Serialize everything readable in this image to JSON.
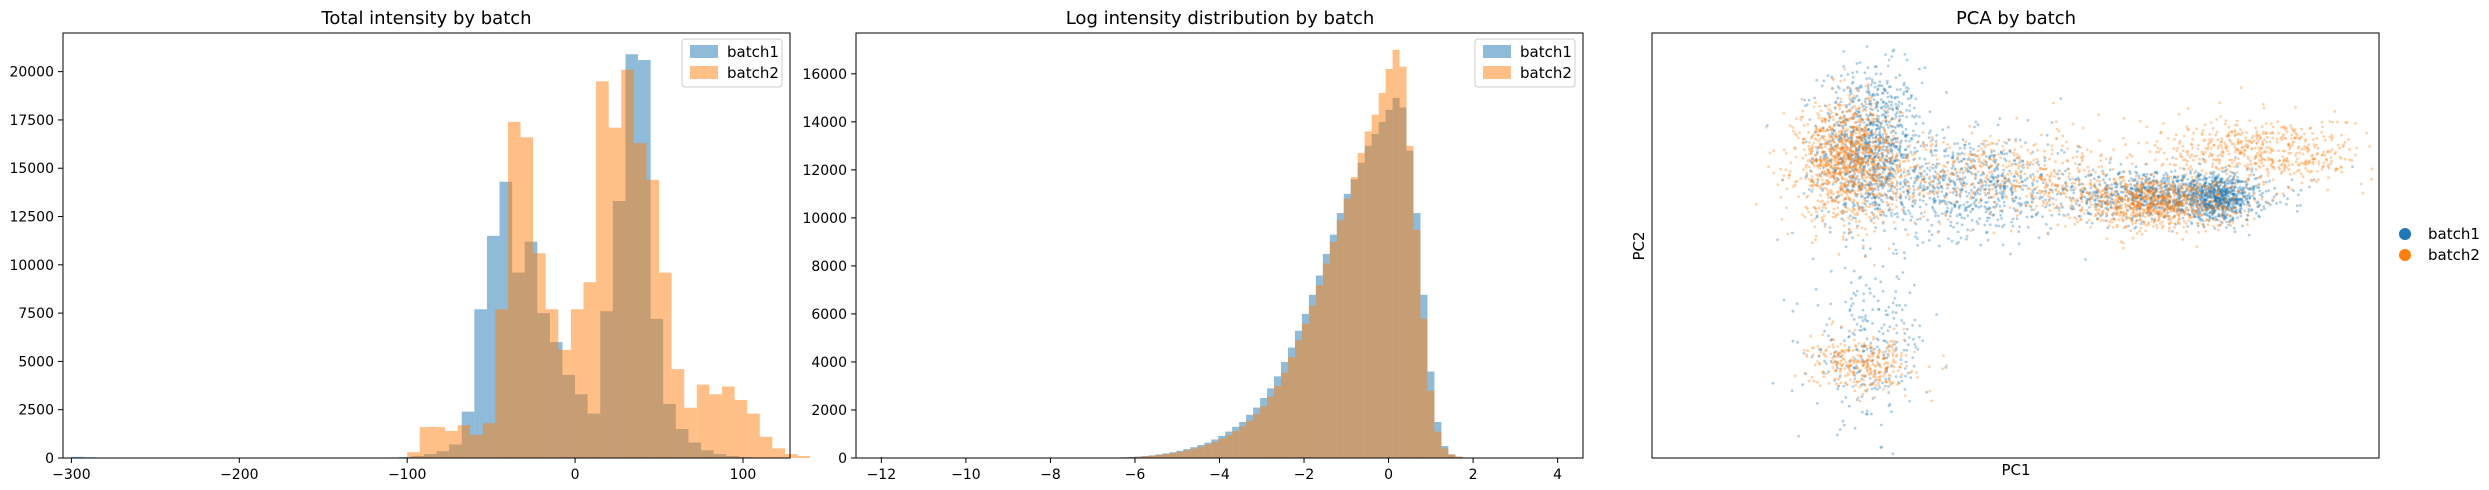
{
  "colors": {
    "batch1": "#1f77b4",
    "batch2": "#ff7f0e"
  },
  "chart_data": [
    {
      "type": "histogram",
      "title": "Total intensity by batch",
      "xlabel": "",
      "ylabel": "",
      "xlim": [
        -305,
        128
      ],
      "ylim": [
        0,
        22000
      ],
      "xticks": [
        -300,
        -200,
        -100,
        0,
        100
      ],
      "yticks": [
        0,
        2500,
        5000,
        7500,
        10000,
        12500,
        15000,
        17500,
        20000
      ],
      "legend": {
        "placement": "top-right",
        "entries": [
          "batch1",
          "batch2"
        ]
      },
      "alpha": 0.5,
      "series": [
        {
          "name": "batch1",
          "bin_start": -300,
          "bin_width": 7.5,
          "counts": [
            60,
            40,
            20,
            10,
            10,
            5,
            5,
            5,
            5,
            5,
            5,
            5,
            5,
            5,
            5,
            5,
            5,
            5,
            5,
            5,
            5,
            10,
            10,
            15,
            20,
            30,
            50,
            100,
            200,
            350,
            700,
            2400,
            7700,
            11500,
            14300,
            9600,
            11200,
            7500,
            6000,
            4300,
            3300,
            2300,
            7600,
            13300,
            20900,
            20600,
            7200,
            2800,
            1500,
            800,
            400,
            200,
            100,
            50,
            20,
            10,
            0,
            0
          ]
        },
        {
          "name": "batch2",
          "bin_start": -100,
          "bin_width": 7.5,
          "counts": [
            300,
            1600,
            1600,
            1400,
            1700,
            1200,
            1800,
            7700,
            17400,
            16600,
            10600,
            7700,
            5600,
            7700,
            9100,
            19500,
            17100,
            20100,
            16300,
            14400,
            9600,
            4600,
            2600,
            3800,
            3300,
            3700,
            3000,
            2300,
            1100,
            500,
            200,
            100
          ]
        }
      ]
    },
    {
      "type": "histogram",
      "title": "Log intensity distribution by batch",
      "xlabel": "",
      "ylabel": "",
      "xlim": [
        -12.6,
        4.6
      ],
      "ylim": [
        0,
        17700
      ],
      "xticks": [
        -12,
        -10,
        -8,
        -6,
        -4,
        -2,
        0,
        2,
        4
      ],
      "yticks": [
        0,
        2000,
        4000,
        6000,
        8000,
        10000,
        12000,
        14000,
        16000
      ],
      "legend": {
        "placement": "top-right",
        "entries": [
          "batch1",
          "batch2"
        ]
      },
      "alpha": 0.5,
      "series": [
        {
          "name": "batch1",
          "bin_start": -7.0,
          "bin_width": 0.165,
          "counts": [
            5,
            10,
            15,
            20,
            30,
            45,
            60,
            80,
            110,
            150,
            190,
            240,
            300,
            370,
            450,
            540,
            640,
            770,
            920,
            1100,
            1300,
            1500,
            1800,
            2100,
            2500,
            2900,
            3400,
            4000,
            4600,
            5300,
            6000,
            6800,
            7600,
            8500,
            9300,
            10200,
            11000,
            11600,
            12300,
            13000,
            13500,
            14000,
            14500,
            15000,
            14600,
            12800,
            10200,
            6800,
            3600,
            1500,
            500,
            150,
            50,
            20,
            10,
            5
          ]
        },
        {
          "name": "batch2",
          "bin_start": -7.0,
          "bin_width": 0.165,
          "counts": [
            5,
            8,
            12,
            18,
            25,
            35,
            50,
            70,
            95,
            125,
            160,
            205,
            255,
            315,
            390,
            470,
            560,
            670,
            800,
            950,
            1120,
            1320,
            1550,
            1820,
            2150,
            2550,
            3000,
            3550,
            4200,
            4900,
            5600,
            6350,
            7200,
            8100,
            9000,
            9900,
            10800,
            11700,
            12700,
            13600,
            14300,
            15200,
            16200,
            17000,
            16300,
            13000,
            9500,
            5800,
            2800,
            1100,
            400,
            150,
            60,
            25,
            10,
            5
          ]
        }
      ],
      "outliers": {
        "x": -12,
        "count": 5
      }
    },
    {
      "type": "scatter",
      "title": "PCA by batch",
      "xlabel": "PC1",
      "ylabel": "PC2",
      "xlim": [
        0,
        1
      ],
      "ylim": [
        0,
        1
      ],
      "xticks": [],
      "yticks": [],
      "legend": {
        "placement": "right-outside",
        "entries": [
          "batch1",
          "batch2"
        ]
      },
      "series": [
        {
          "name": "batch1",
          "clusters": [
            {
              "cx": 0.3,
              "cy": 0.74,
              "sx": 0.035,
              "sy": 0.09,
              "n": 850
            },
            {
              "cx": 0.43,
              "cy": 0.64,
              "sx": 0.08,
              "sy": 0.06,
              "n": 750
            },
            {
              "cx": 0.71,
              "cy": 0.62,
              "sx": 0.07,
              "sy": 0.03,
              "n": 850
            },
            {
              "cx": 0.78,
              "cy": 0.61,
              "sx": 0.025,
              "sy": 0.025,
              "n": 550
            },
            {
              "cx": 0.3,
              "cy": 0.26,
              "sx": 0.04,
              "sy": 0.09,
              "n": 260
            }
          ]
        },
        {
          "name": "batch2",
          "clusters": [
            {
              "cx": 0.27,
              "cy": 0.7,
              "sx": 0.035,
              "sy": 0.07,
              "n": 1100
            },
            {
              "cx": 0.48,
              "cy": 0.67,
              "sx": 0.1,
              "sy": 0.05,
              "n": 550
            },
            {
              "cx": 0.69,
              "cy": 0.6,
              "sx": 0.06,
              "sy": 0.03,
              "n": 850
            },
            {
              "cx": 0.84,
              "cy": 0.72,
              "sx": 0.07,
              "sy": 0.04,
              "n": 550
            },
            {
              "cx": 0.29,
              "cy": 0.22,
              "sx": 0.035,
              "sy": 0.03,
              "n": 320
            }
          ]
        }
      ]
    }
  ]
}
